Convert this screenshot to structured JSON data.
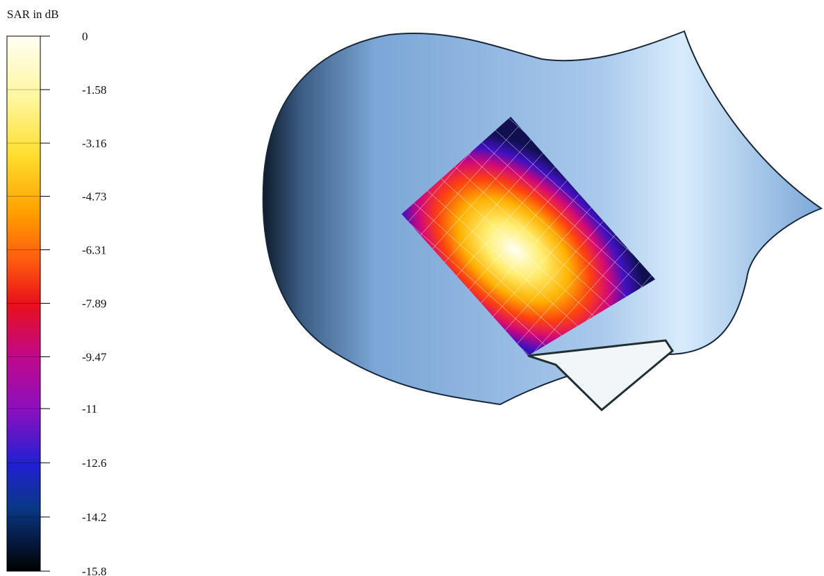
{
  "colorbar": {
    "title": "SAR in dB",
    "range": [
      -15.8,
      0
    ],
    "ticks": [
      0,
      -1.58,
      -3.16,
      -4.73,
      -6.31,
      -7.89,
      -9.47,
      -11,
      -12.6,
      -14.2,
      -15.8
    ]
  }
}
